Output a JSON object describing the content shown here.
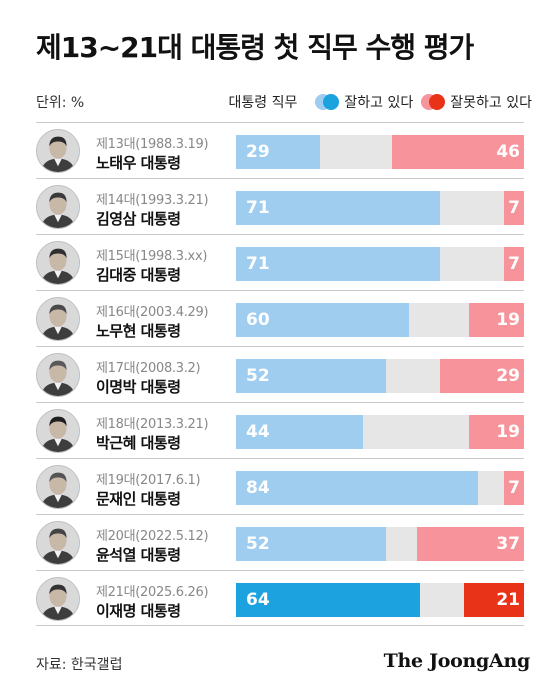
{
  "title": "제13~21대 대통령 첫 직무 수행 평가",
  "unit_label": "단위: %",
  "source": "자료: 한국갤럽",
  "brand": "The JoongAng",
  "colors": {
    "good_past": "#9ecdf0",
    "bad_past": "#f7939a",
    "good_current": "#1ba2df",
    "bad_current": "#e83319",
    "track": "#e6e6e6"
  },
  "chart_data": {
    "type": "bar",
    "orientation": "horizontal",
    "title": "제13~21대 대통령 첫 직무 수행 평가",
    "unit": "%",
    "legend": {
      "title": "대통령 직무",
      "placement": "top-right",
      "items": [
        "잘하고 있다",
        "잘못하고 있다"
      ]
    },
    "xlim": [
      0,
      100
    ],
    "categories": [
      {
        "term": "제13대(1988.3.19)",
        "name": "노태우 대통령",
        "icon": "portrait-roh-tae-woo"
      },
      {
        "term": "제14대(1993.3.21)",
        "name": "김영삼 대통령",
        "icon": "portrait-kim-young-sam"
      },
      {
        "term": "제15대(1998.3.xx)",
        "name": "김대중 대통령",
        "icon": "portrait-kim-dae-jung"
      },
      {
        "term": "제16대(2003.4.29)",
        "name": "노무현 대통령",
        "icon": "portrait-roh-moo-hyun"
      },
      {
        "term": "제17대(2008.3.2)",
        "name": "이명박 대통령",
        "icon": "portrait-lee-myung-bak"
      },
      {
        "term": "제18대(2013.3.21)",
        "name": "박근혜 대통령",
        "icon": "portrait-park-geun-hye"
      },
      {
        "term": "제19대(2017.6.1)",
        "name": "문재인 대통령",
        "icon": "portrait-moon-jae-in"
      },
      {
        "term": "제20대(2022.5.12)",
        "name": "윤석열 대통령",
        "icon": "portrait-yoon-suk-yeol"
      },
      {
        "term": "제21대(2025.6.26)",
        "name": "이재명 대통령",
        "icon": "portrait-lee-jae-myung"
      }
    ],
    "series": [
      {
        "name": "잘하고 있다",
        "values": [
          29,
          71,
          71,
          60,
          52,
          44,
          84,
          52,
          64
        ]
      },
      {
        "name": "잘못하고 있다",
        "values": [
          46,
          7,
          7,
          19,
          29,
          19,
          7,
          37,
          21
        ]
      }
    ],
    "highlight_index": 8
  }
}
